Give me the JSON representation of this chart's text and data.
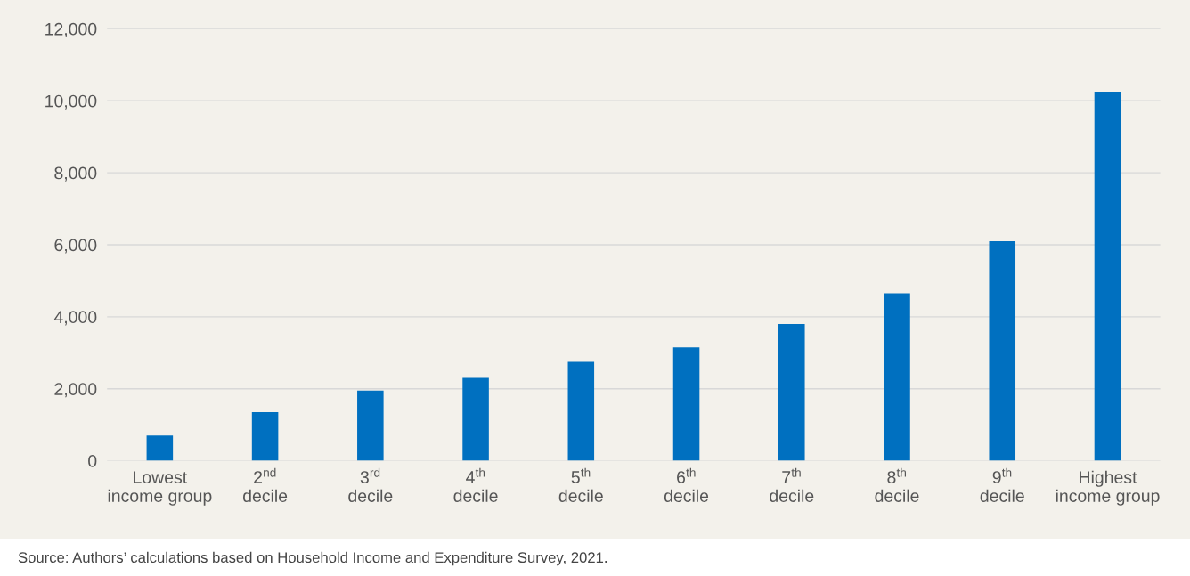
{
  "chart_data": {
    "type": "bar",
    "categories": [
      "Lowest\nincome group",
      "2$^{nd}$\ndecile",
      "3$^{rd}$\ndecile",
      "4$^{th}$\ndecile",
      "5$^{th}$\ndecile",
      "6$^{th}$\ndecile",
      "7$^{th}$\ndecile",
      "8$^{th}$\ndecile",
      "9$^{th}$\ndecile",
      "Highest\nincome group"
    ],
    "values": [
      700,
      1350,
      1950,
      2300,
      2750,
      3150,
      3800,
      4650,
      6100,
      10250
    ],
    "color": "#0070c0",
    "ylim": [
      0,
      12000
    ],
    "yticks": [
      {
        "value": 0,
        "label": "0"
      },
      {
        "value": 2000,
        "label": "2,000"
      },
      {
        "value": 4000,
        "label": "4,000"
      },
      {
        "value": 6000,
        "label": "6,000"
      },
      {
        "value": 8000,
        "label": "8,000"
      },
      {
        "value": 10000,
        "label": "10,000"
      },
      {
        "value": 12000,
        "label": "12,000"
      }
    ],
    "grid": "y",
    "annotations": [
      "Source: Authors’ calculations based on Household Income and Expenditure Survey, 2021."
    ]
  }
}
